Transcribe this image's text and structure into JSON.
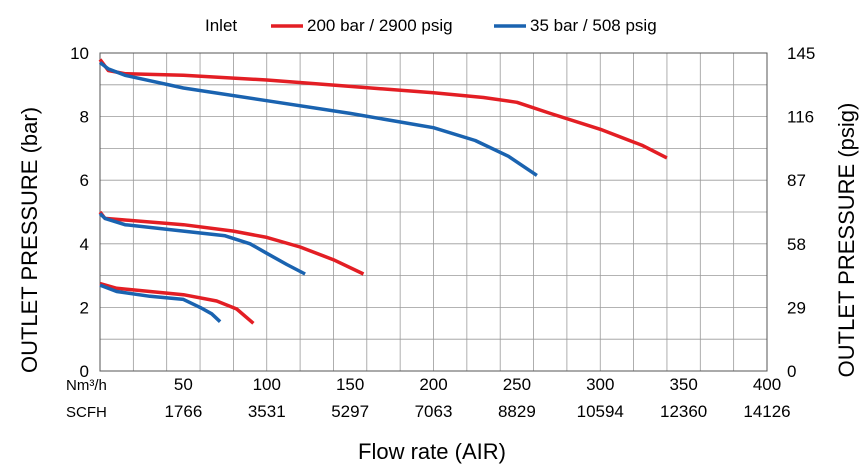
{
  "chart_data": {
    "type": "line",
    "title": "",
    "legend": {
      "title": "Inlet",
      "placement": "top"
    },
    "xlabel": "Flow rate (AIR)",
    "ylabel_left": "OUTLET PRESSURE (bar)",
    "ylabel_right": "OUTLET PRESSURE (psig)",
    "x_unit_primary": "Nm³/h",
    "x_unit_secondary": "SCFH",
    "xlim": [
      0,
      400
    ],
    "ylim": [
      0,
      10
    ],
    "grid": true,
    "x_ticks": [
      {
        "value": 50,
        "label": "50",
        "label_scfh": "1766"
      },
      {
        "value": 100,
        "label": "100",
        "label_scfh": "3531"
      },
      {
        "value": 150,
        "label": "150",
        "label_scfh": "5297"
      },
      {
        "value": 200,
        "label": "200",
        "label_scfh": "7063"
      },
      {
        "value": 250,
        "label": "250",
        "label_scfh": "8829"
      },
      {
        "value": 300,
        "label": "300",
        "label_scfh": "10594"
      },
      {
        "value": 350,
        "label": "350",
        "label_scfh": "12360"
      },
      {
        "value": 400,
        "label": "400",
        "label_scfh": "14126"
      }
    ],
    "y_ticks_left": [
      {
        "value": 0,
        "label": "0"
      },
      {
        "value": 2,
        "label": "2"
      },
      {
        "value": 4,
        "label": "4"
      },
      {
        "value": 6,
        "label": "6"
      },
      {
        "value": 8,
        "label": "8"
      },
      {
        "value": 10,
        "label": "10"
      }
    ],
    "y_ticks_right": [
      {
        "value": 0,
        "label": "0"
      },
      {
        "value": 2,
        "label": "29"
      },
      {
        "value": 4,
        "label": "58"
      },
      {
        "value": 6,
        "label": "87"
      },
      {
        "value": 8,
        "label": "116"
      },
      {
        "value": 10,
        "label": "145"
      }
    ],
    "series": [
      {
        "name": "200 bar / 2900 psig",
        "color": "#e31e24",
        "curves": [
          [
            [
              0,
              9.8
            ],
            [
              5,
              9.45
            ],
            [
              15,
              9.35
            ],
            [
              50,
              9.3
            ],
            [
              100,
              9.15
            ],
            [
              150,
              8.95
            ],
            [
              200,
              8.75
            ],
            [
              230,
              8.6
            ],
            [
              250,
              8.45
            ],
            [
              270,
              8.1
            ],
            [
              300,
              7.6
            ],
            [
              325,
              7.1
            ],
            [
              340,
              6.7
            ]
          ],
          [
            [
              0,
              5.0
            ],
            [
              3,
              4.8
            ],
            [
              15,
              4.75
            ],
            [
              50,
              4.6
            ],
            [
              80,
              4.4
            ],
            [
              100,
              4.2
            ],
            [
              120,
              3.9
            ],
            [
              140,
              3.5
            ],
            [
              158,
              3.05
            ]
          ],
          [
            [
              0,
              2.75
            ],
            [
              10,
              2.6
            ],
            [
              30,
              2.5
            ],
            [
              50,
              2.4
            ],
            [
              70,
              2.2
            ],
            [
              82,
              1.95
            ],
            [
              92,
              1.5
            ]
          ]
        ]
      },
      {
        "name": "35 bar / 508 psig",
        "color": "#1a63b0",
        "curves": [
          [
            [
              0,
              9.7
            ],
            [
              5,
              9.5
            ],
            [
              15,
              9.3
            ],
            [
              50,
              8.9
            ],
            [
              100,
              8.5
            ],
            [
              150,
              8.1
            ],
            [
              200,
              7.65
            ],
            [
              225,
              7.25
            ],
            [
              245,
              6.75
            ],
            [
              262,
              6.15
            ]
          ],
          [
            [
              0,
              4.95
            ],
            [
              3,
              4.8
            ],
            [
              15,
              4.6
            ],
            [
              50,
              4.4
            ],
            [
              75,
              4.25
            ],
            [
              90,
              4.0
            ],
            [
              100,
              3.7
            ],
            [
              112,
              3.35
            ],
            [
              123,
              3.05
            ]
          ],
          [
            [
              0,
              2.7
            ],
            [
              10,
              2.5
            ],
            [
              30,
              2.35
            ],
            [
              50,
              2.25
            ],
            [
              60,
              2.0
            ],
            [
              67,
              1.8
            ],
            [
              72,
              1.55
            ]
          ]
        ]
      }
    ]
  }
}
